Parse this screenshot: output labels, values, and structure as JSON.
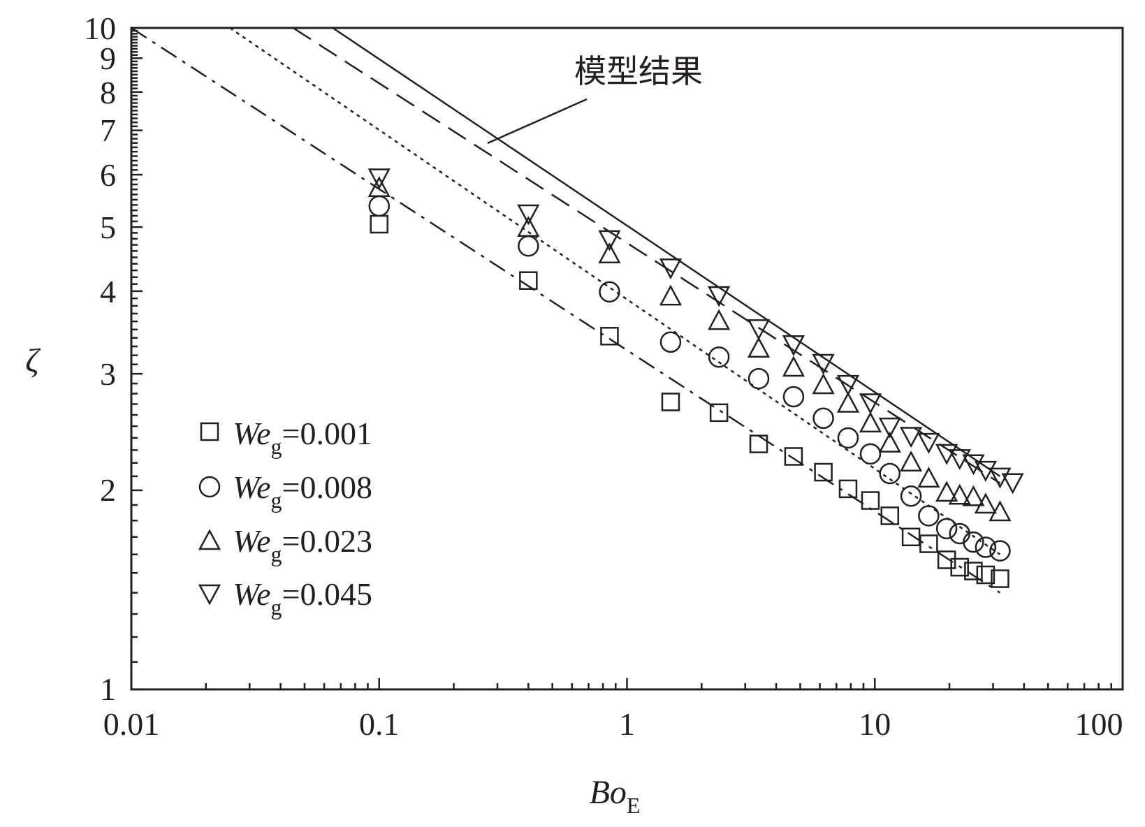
{
  "chart_data": {
    "type": "scatter",
    "title": "",
    "xlabel": "Bo",
    "xlabel_sub": "E",
    "ylabel": "ζ",
    "xscale": "log",
    "yscale": "log",
    "xlim": [
      0.01,
      100
    ],
    "ylim": [
      1,
      10
    ],
    "x_tick_labels": [
      "0.01",
      "0.1",
      "1",
      "10",
      "100"
    ],
    "y_tick_labels": [
      "1",
      "2",
      "3",
      "4",
      "5",
      "6",
      "7",
      "8",
      "9",
      "10"
    ],
    "annotation": "模型结果",
    "legend_position": "bottom-left",
    "series": [
      {
        "name": "We",
        "name_sub": "g",
        "name_value": "=0.001",
        "marker": "square",
        "line_style": "dash-dot",
        "model_line": {
          "x": [
            0.01,
            32
          ],
          "y": [
            10,
            1.4
          ]
        },
        "points": [
          [
            0.1,
            5.05
          ],
          [
            0.4,
            4.15
          ],
          [
            0.85,
            3.42
          ],
          [
            1.5,
            2.72
          ],
          [
            2.35,
            2.62
          ],
          [
            3.4,
            2.35
          ],
          [
            4.7,
            2.25
          ],
          [
            6.2,
            2.13
          ],
          [
            7.8,
            2.01
          ],
          [
            9.6,
            1.93
          ],
          [
            11.5,
            1.83
          ],
          [
            14,
            1.7
          ],
          [
            16.5,
            1.66
          ],
          [
            19.5,
            1.57
          ],
          [
            22,
            1.53
          ],
          [
            25,
            1.51
          ],
          [
            28,
            1.49
          ],
          [
            32,
            1.47
          ]
        ]
      },
      {
        "name": "We",
        "name_sub": "g",
        "name_value": "=0.008",
        "marker": "circle",
        "line_style": "dotted",
        "model_line": {
          "x": [
            0.025,
            32
          ],
          "y": [
            10,
            1.6
          ]
        },
        "points": [
          [
            0.1,
            5.38
          ],
          [
            0.4,
            4.68
          ],
          [
            0.85,
            3.99
          ],
          [
            1.5,
            3.35
          ],
          [
            2.35,
            3.18
          ],
          [
            3.4,
            2.95
          ],
          [
            4.7,
            2.77
          ],
          [
            6.2,
            2.57
          ],
          [
            7.8,
            2.4
          ],
          [
            9.6,
            2.27
          ],
          [
            11.5,
            2.12
          ],
          [
            14,
            1.96
          ],
          [
            16.5,
            1.83
          ],
          [
            19.5,
            1.75
          ],
          [
            22,
            1.72
          ],
          [
            25,
            1.67
          ],
          [
            28,
            1.64
          ],
          [
            32,
            1.62
          ]
        ]
      },
      {
        "name": "We",
        "name_sub": "g",
        "name_value": "=0.023",
        "marker": "triangle-up",
        "line_style": "dashed",
        "model_line": {
          "x": [
            0.045,
            32
          ],
          "y": [
            10,
            2.05
          ]
        },
        "points": [
          [
            0.1,
            5.72
          ],
          [
            0.4,
            4.98
          ],
          [
            0.85,
            4.54
          ],
          [
            1.5,
            3.92
          ],
          [
            2.35,
            3.6
          ],
          [
            3.4,
            3.27
          ],
          [
            4.7,
            3.06
          ],
          [
            6.2,
            2.88
          ],
          [
            7.8,
            2.7
          ],
          [
            9.6,
            2.52
          ],
          [
            11.5,
            2.35
          ],
          [
            14,
            2.2
          ],
          [
            16.5,
            2.08
          ],
          [
            19.5,
            1.98
          ],
          [
            22,
            1.96
          ],
          [
            25,
            1.95
          ],
          [
            28,
            1.9
          ],
          [
            32,
            1.85
          ]
        ]
      },
      {
        "name": "We",
        "name_sub": "g",
        "name_value": "=0.045",
        "marker": "triangle-down",
        "line_style": "solid",
        "model_line": {
          "x": [
            0.065,
            32
          ],
          "y": [
            10,
            2.1
          ]
        },
        "points": [
          [
            0.1,
            5.95
          ],
          [
            0.4,
            5.25
          ],
          [
            0.85,
            4.8
          ],
          [
            1.5,
            4.35
          ],
          [
            2.35,
            3.95
          ],
          [
            3.4,
            3.52
          ],
          [
            4.7,
            3.33
          ],
          [
            6.2,
            3.12
          ],
          [
            7.8,
            2.9
          ],
          [
            9.6,
            2.72
          ],
          [
            11.5,
            2.5
          ],
          [
            14,
            2.42
          ],
          [
            16.5,
            2.37
          ],
          [
            19.5,
            2.28
          ],
          [
            22,
            2.24
          ],
          [
            25,
            2.2
          ],
          [
            28,
            2.15
          ],
          [
            32,
            2.1
          ],
          [
            36,
            2.06
          ]
        ]
      }
    ]
  }
}
